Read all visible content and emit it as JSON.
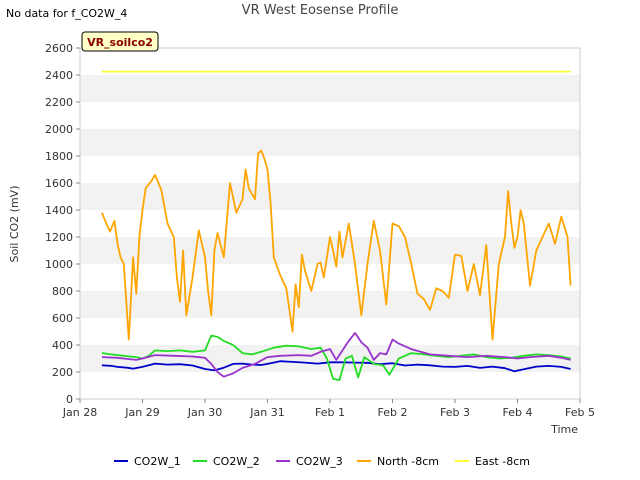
{
  "header": {
    "status": "No data for f_CO2W_4",
    "title": "VR West Eosense Profile"
  },
  "badge": {
    "label": "VR_soilco2"
  },
  "chart_data": {
    "type": "line",
    "title": "VR West Eosense Profile",
    "xlabel": "Time",
    "ylabel": "Soil CO2 (mV)",
    "ylim": [
      0,
      2600
    ],
    "yticks": [
      0,
      200,
      400,
      600,
      800,
      1000,
      1200,
      1400,
      1600,
      1800,
      2000,
      2200,
      2400,
      2600
    ],
    "xlim": [
      0,
      8
    ],
    "xticks": [
      {
        "value": 0,
        "label": "Jan 28"
      },
      {
        "value": 1,
        "label": "Jan 29"
      },
      {
        "value": 2,
        "label": "Jan 30"
      },
      {
        "value": 3,
        "label": "Jan 31"
      },
      {
        "value": 4,
        "label": "Feb 1"
      },
      {
        "value": 5,
        "label": "Feb 2"
      },
      {
        "value": 6,
        "label": "Feb 3"
      },
      {
        "value": 7,
        "label": "Feb 4"
      },
      {
        "value": 8,
        "label": "Feb 5"
      }
    ],
    "legend_position": "bottom",
    "series": [
      {
        "name": "CO2W_1",
        "color": "#0000cc",
        "x": [
          0.35,
          0.5,
          0.6,
          0.75,
          0.85,
          1.0,
          1.2,
          1.4,
          1.6,
          1.8,
          2.0,
          2.15,
          2.3,
          2.45,
          2.6,
          2.75,
          2.9,
          3.05,
          3.2,
          3.4,
          3.6,
          3.8,
          4.0,
          4.2,
          4.4,
          4.6,
          4.8,
          5.0,
          5.2,
          5.4,
          5.6,
          5.8,
          6.0,
          6.2,
          6.4,
          6.6,
          6.8,
          6.95,
          7.1,
          7.3,
          7.5,
          7.7,
          7.85
        ],
        "y": [
          250,
          245,
          238,
          232,
          225,
          238,
          262,
          255,
          258,
          248,
          222,
          212,
          232,
          260,
          262,
          255,
          252,
          265,
          280,
          275,
          270,
          262,
          272,
          272,
          270,
          268,
          258,
          265,
          248,
          255,
          250,
          240,
          238,
          245,
          230,
          240,
          228,
          205,
          220,
          240,
          245,
          238,
          222
        ]
      },
      {
        "name": "CO2W_2",
        "color": "#22dd22",
        "x": [
          0.35,
          0.5,
          0.7,
          0.9,
          1.0,
          1.1,
          1.2,
          1.4,
          1.6,
          1.8,
          2.0,
          2.1,
          2.2,
          2.3,
          2.45,
          2.6,
          2.75,
          2.9,
          3.1,
          3.3,
          3.5,
          3.7,
          3.85,
          3.95,
          4.05,
          4.15,
          4.25,
          4.35,
          4.45,
          4.55,
          4.7,
          4.85,
          4.95,
          5.1,
          5.3,
          5.5,
          5.7,
          5.9,
          6.1,
          6.3,
          6.5,
          6.7,
          6.9,
          7.1,
          7.3,
          7.5,
          7.7,
          7.85
        ],
        "y": [
          340,
          330,
          320,
          310,
          300,
          320,
          360,
          355,
          360,
          350,
          360,
          470,
          460,
          430,
          400,
          340,
          330,
          350,
          380,
          395,
          390,
          370,
          380,
          300,
          150,
          140,
          300,
          320,
          160,
          310,
          260,
          250,
          180,
          300,
          340,
          330,
          320,
          310,
          320,
          330,
          310,
          300,
          305,
          320,
          330,
          325,
          315,
          300
        ]
      },
      {
        "name": "CO2W_3",
        "color": "#9933cc",
        "x": [
          0.35,
          0.6,
          0.9,
          1.0,
          1.2,
          1.5,
          1.8,
          2.0,
          2.1,
          2.2,
          2.3,
          2.45,
          2.6,
          2.8,
          3.0,
          3.2,
          3.5,
          3.7,
          3.85,
          4.0,
          4.1,
          4.2,
          4.3,
          4.4,
          4.5,
          4.6,
          4.7,
          4.8,
          4.9,
          5.0,
          5.1,
          5.3,
          5.6,
          5.9,
          6.2,
          6.5,
          6.8,
          7.0,
          7.2,
          7.5,
          7.7,
          7.85
        ],
        "y": [
          310,
          305,
          290,
          300,
          325,
          320,
          315,
          305,
          260,
          200,
          165,
          190,
          230,
          260,
          310,
          320,
          325,
          320,
          350,
          370,
          290,
          360,
          430,
          490,
          420,
          380,
          290,
          340,
          330,
          440,
          410,
          370,
          330,
          320,
          310,
          320,
          310,
          300,
          310,
          320,
          305,
          290
        ]
      },
      {
        "name": "North -8cm",
        "color": "#ffa500",
        "x": [
          0.35,
          0.42,
          0.48,
          0.55,
          0.6,
          0.65,
          0.7,
          0.78,
          0.85,
          0.9,
          0.95,
          1.0,
          1.05,
          1.1,
          1.15,
          1.2,
          1.3,
          1.4,
          1.5,
          1.55,
          1.6,
          1.65,
          1.7,
          1.8,
          1.9,
          2.0,
          2.05,
          2.1,
          2.15,
          2.2,
          2.3,
          2.4,
          2.5,
          2.6,
          2.65,
          2.7,
          2.8,
          2.85,
          2.9,
          2.95,
          3.0,
          3.05,
          3.1,
          3.2,
          3.3,
          3.4,
          3.45,
          3.5,
          3.55,
          3.6,
          3.7,
          3.8,
          3.85,
          3.9,
          3.95,
          4.0,
          4.05,
          4.1,
          4.15,
          4.2,
          4.3,
          4.4,
          4.5,
          4.6,
          4.7,
          4.8,
          4.9,
          5.0,
          5.1,
          5.2,
          5.3,
          5.4,
          5.5,
          5.6,
          5.7,
          5.8,
          5.9,
          6.0,
          6.1,
          6.2,
          6.3,
          6.4,
          6.5,
          6.6,
          6.7,
          6.8,
          6.85,
          6.9,
          6.95,
          7.0,
          7.05,
          7.1,
          7.2,
          7.3,
          7.4,
          7.5,
          7.6,
          7.7,
          7.8,
          7.85
        ],
        "y": [
          1380,
          1300,
          1240,
          1320,
          1150,
          1050,
          1000,
          440,
          1050,
          780,
          1200,
          1400,
          1560,
          1590,
          1620,
          1660,
          1550,
          1300,
          1200,
          900,
          720,
          1100,
          620,
          900,
          1250,
          1050,
          800,
          620,
          1100,
          1230,
          1050,
          1600,
          1380,
          1480,
          1700,
          1560,
          1480,
          1820,
          1840,
          1780,
          1700,
          1450,
          1050,
          920,
          820,
          500,
          850,
          680,
          1070,
          950,
          800,
          1000,
          1010,
          900,
          1050,
          1200,
          1100,
          980,
          1240,
          1050,
          1300,
          1000,
          620,
          1000,
          1320,
          1100,
          700,
          1300,
          1280,
          1200,
          1000,
          780,
          740,
          660,
          820,
          800,
          750,
          1070,
          1060,
          800,
          1000,
          770,
          1140,
          440,
          1000,
          1200,
          1540,
          1300,
          1120,
          1200,
          1400,
          1300,
          840,
          1100,
          1200,
          1300,
          1150,
          1350,
          1200,
          840
        ]
      },
      {
        "name": "East -8cm",
        "color": "#ffff33",
        "x": [
          0.35,
          7.85
        ],
        "y": [
          2425,
          2425
        ]
      }
    ]
  }
}
